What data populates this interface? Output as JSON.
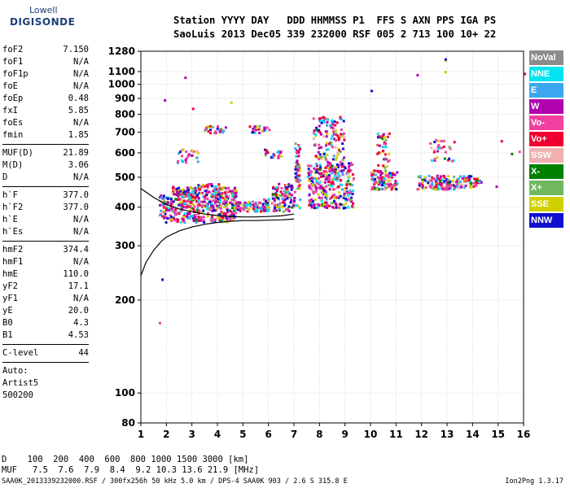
{
  "logo": {
    "top": "Lowell",
    "bottom": "DIGISONDE"
  },
  "header": {
    "line1": "Station YYYY DAY   DDD HHMMSS P1  FFS S AXN PPS IGA PS",
    "line2": "SaoLuis 2013 Dec05 339 232000 RSF 005 2 713 100 10+ 22"
  },
  "params": [
    {
      "name": "foF2",
      "value": "7.150"
    },
    {
      "name": "foF1",
      "value": "N/A"
    },
    {
      "name": "foF1p",
      "value": "N/A"
    },
    {
      "name": "foE",
      "value": "N/A"
    },
    {
      "name": "foEp",
      "value": "0.48"
    },
    {
      "name": "fxI",
      "value": "5.85"
    },
    {
      "name": "foEs",
      "value": "N/A"
    },
    {
      "name": "fmin",
      "value": "1.85"
    },
    {
      "sep": true
    },
    {
      "name": "MUF(D)",
      "value": "21.89"
    },
    {
      "name": "M(D)",
      "value": "3.06"
    },
    {
      "name": "D",
      "value": "N/A"
    },
    {
      "sep": true
    },
    {
      "name": "h`F",
      "value": "377.0"
    },
    {
      "name": "h`F2",
      "value": "377.0"
    },
    {
      "name": "h`E",
      "value": "N/A"
    },
    {
      "name": "h`Es",
      "value": "N/A"
    },
    {
      "sep": true
    },
    {
      "name": "hmF2",
      "value": "374.4"
    },
    {
      "name": "hmF1",
      "value": "N/A"
    },
    {
      "name": "hmE",
      "value": "110.0"
    },
    {
      "name": "yF2",
      "value": "17.1"
    },
    {
      "name": "yF1",
      "value": "N/A"
    },
    {
      "name": "yE",
      "value": "20.0"
    },
    {
      "name": "B0",
      "value": "4.3"
    },
    {
      "name": "B1",
      "value": "4.53"
    },
    {
      "sep": true
    },
    {
      "name": "C-level",
      "value": "44"
    },
    {
      "sep": true
    }
  ],
  "auto": [
    "Auto:",
    "Artist5",
    "500200"
  ],
  "muf_table": {
    "row1": "D    100  200  400  600  800 1000 1500 3000 [km]",
    "row2": "MUF   7.5  7.6  7.9  8.4  9.2 10.3 13.6 21.9 [MHz]"
  },
  "footer": "SAA0K_2013339232000.RSF / 300fx256h 50 kHz 5.0 km / DPS-4 SAA0K 903 / 2.6 S 315.8 E",
  "version": "Ion2Png 1.3.17",
  "legend": [
    {
      "label": "NoVal",
      "color": "#8c8c8c"
    },
    {
      "label": "NNE",
      "color": "#00e5f0"
    },
    {
      "label": "E",
      "color": "#3ba7f0"
    },
    {
      "label": "W",
      "color": "#b000b0"
    },
    {
      "label": "Vo-",
      "color": "#f040a0"
    },
    {
      "label": "Vo+",
      "color": "#f00030"
    },
    {
      "label": "SSW",
      "color": "#f0b0b0"
    },
    {
      "label": "X-",
      "color": "#008000"
    },
    {
      "label": "X+",
      "color": "#70b860"
    },
    {
      "label": "SSE",
      "color": "#d0d000"
    },
    {
      "label": "NNW",
      "color": "#1010d0"
    }
  ],
  "chart_data": {
    "type": "scatter",
    "xlabel": "",
    "ylabel": "",
    "xlim": [
      1,
      16
    ],
    "ylim": [
      80,
      1280
    ],
    "y_scale": "log",
    "xticks": [
      1,
      2,
      3,
      4,
      5,
      6,
      7,
      8,
      9,
      10,
      11,
      12,
      13,
      14,
      15,
      16
    ],
    "yticks": [
      80,
      100,
      200,
      300,
      400,
      500,
      600,
      700,
      800,
      900,
      1000,
      1100,
      1280
    ],
    "grid": true,
    "clusters": [
      {
        "x": [
          1.7,
          2.2
        ],
        "y": [
          360,
          440
        ],
        "n": 60
      },
      {
        "x": [
          2.2,
          3.2
        ],
        "y": [
          360,
          470
        ],
        "n": 200
      },
      {
        "x": [
          3.2,
          4.2
        ],
        "y": [
          360,
          480
        ],
        "n": 200
      },
      {
        "x": [
          4.2,
          4.7
        ],
        "y": [
          360,
          470
        ],
        "n": 110
      },
      {
        "x": [
          4.7,
          5.6
        ],
        "y": [
          390,
          420
        ],
        "n": 70
      },
      {
        "x": [
          5.6,
          6.0
        ],
        "y": [
          390,
          430
        ],
        "n": 40
      },
      {
        "x": [
          6.1,
          7.0
        ],
        "y": [
          390,
          480
        ],
        "n": 110
      },
      {
        "x": [
          7.0,
          7.2
        ],
        "y": [
          400,
          650
        ],
        "n": 50
      },
      {
        "x": [
          7.5,
          9.3
        ],
        "y": [
          400,
          560
        ],
        "n": 320
      },
      {
        "x": [
          7.7,
          9.0
        ],
        "y": [
          560,
          790
        ],
        "n": 120
      },
      {
        "x": [
          10.0,
          11.0
        ],
        "y": [
          460,
          530
        ],
        "n": 110
      },
      {
        "x": [
          10.2,
          10.7
        ],
        "y": [
          540,
          700
        ],
        "n": 40
      },
      {
        "x": [
          11.8,
          13.9
        ],
        "y": [
          460,
          510
        ],
        "n": 150
      },
      {
        "x": [
          12.3,
          13.3
        ],
        "y": [
          560,
          680
        ],
        "n": 30
      },
      {
        "x": [
          14.0,
          14.3
        ],
        "y": [
          470,
          500
        ],
        "n": 25
      },
      {
        "x": [
          2.4,
          3.2
        ],
        "y": [
          560,
          620
        ],
        "n": 25
      },
      {
        "x": [
          3.4,
          4.3
        ],
        "y": [
          700,
          740
        ],
        "n": 25
      },
      {
        "x": [
          5.2,
          6.0
        ],
        "y": [
          700,
          740
        ],
        "n": 25
      },
      {
        "x": [
          5.8,
          6.5
        ],
        "y": [
          580,
          620
        ],
        "n": 20
      }
    ],
    "points": [
      {
        "x": 1.7,
        "y": 170
      },
      {
        "x": 1.8,
        "y": 235
      },
      {
        "x": 1.9,
        "y": 895
      },
      {
        "x": 2.7,
        "y": 1060
      },
      {
        "x": 10.0,
        "y": 960
      },
      {
        "x": 11.8,
        "y": 1080
      },
      {
        "x": 12.9,
        "y": 1205
      },
      {
        "x": 12.9,
        "y": 1215
      },
      {
        "x": 12.9,
        "y": 1105
      },
      {
        "x": 16.0,
        "y": 1090
      },
      {
        "x": 15.1,
        "y": 660
      },
      {
        "x": 15.5,
        "y": 600
      },
      {
        "x": 15.8,
        "y": 610
      },
      {
        "x": 4.5,
        "y": 880
      },
      {
        "x": 3.0,
        "y": 840
      },
      {
        "x": 14.9,
        "y": 470
      }
    ],
    "trace_outer": {
      "x": [
        1.0,
        1.5,
        2.0,
        2.5,
        3.0,
        3.5,
        4.0,
        4.5,
        5.0,
        5.5,
        6.0,
        6.5,
        7.0
      ],
      "y": [
        460,
        430,
        408,
        395,
        387,
        380,
        376,
        373,
        372,
        372,
        373,
        375,
        380
      ]
    },
    "trace_lower": {
      "x": [
        1.0,
        1.2,
        1.5,
        1.8,
        2.0,
        2.5,
        3.0,
        3.5,
        4.0,
        4.5,
        5.0,
        5.5,
        6.0,
        6.5,
        7.0
      ],
      "y": [
        240,
        265,
        290,
        310,
        320,
        335,
        345,
        352,
        357,
        360,
        362,
        362,
        363,
        364,
        366
      ]
    }
  }
}
